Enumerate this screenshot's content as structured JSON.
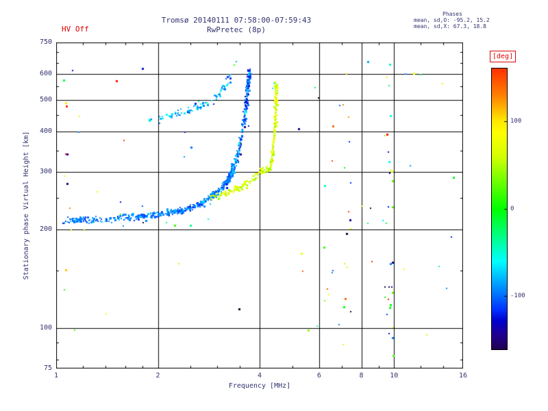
{
  "header": {
    "hv_status": "HV Off",
    "title": "Tromsø 20140111 07:58:00-07:59:43",
    "subtitle": "RwPretec (8p)",
    "phases": {
      "title": "Phases",
      "o_line": "mean, sd,O: -95.2, 15.2",
      "x_line": "mean, sd,X: 67.3, 18.8"
    }
  },
  "colors": {
    "text": "#30306e",
    "accent_red": "#dd0000",
    "grid": "#000000",
    "background": "#ffffff"
  },
  "chart_data": {
    "type": "scatter",
    "title": "Tromsø 20140111 07:58:00-07:59:43",
    "subtitle": "RwPretec (8p)",
    "xlabel": "Frequency [MHz]",
    "ylabel": "Stationary phase Virtual Height [km]",
    "x_scale": "log",
    "y_scale": "log",
    "xlim": [
      1,
      16
    ],
    "ylim": [
      75,
      750
    ],
    "x_ticks": [
      1,
      2,
      4,
      6,
      8,
      10,
      16
    ],
    "y_ticks": [
      75,
      100,
      200,
      300,
      400,
      500,
      600,
      750
    ],
    "x_minor": [
      1.2,
      1.4,
      1.6,
      1.8,
      2.5,
      3,
      3.5,
      5,
      7,
      9,
      12,
      14
    ],
    "y_minor": [
      80,
      90,
      150,
      250,
      350,
      450,
      550,
      650,
      700
    ],
    "grid_x": [
      2,
      4,
      6,
      8,
      10
    ],
    "grid_y": [
      100,
      200,
      300,
      400,
      500,
      600
    ],
    "grid": true,
    "colorbar": {
      "label": "[deg]",
      "ticks": [
        100,
        0,
        -100
      ],
      "range": [
        -160,
        160
      ]
    },
    "colormap": {
      "anchors": [
        [
          180,
          0
        ],
        [
          130,
          30
        ],
        [
          100,
          55
        ],
        [
          60,
          70
        ],
        [
          0,
          120
        ],
        [
          -60,
          180
        ],
        [
          -100,
          215
        ],
        [
          -140,
          250
        ],
        [
          -180,
          275
        ]
      ],
      "dark_below": -115,
      "dark_slope": 0.75
    },
    "phase_stats": {
      "o_mean": -95.2,
      "o_sd": 15.2,
      "x_mean": 67.3,
      "x_sd": 18.8
    },
    "traces": [
      {
        "name": "o-mode-lower",
        "seed": 11,
        "n": 520,
        "fjit": 0.007,
        "hjit": 0.011,
        "phase": -95,
        "sd": 13,
        "points": [
          [
            1.05,
            212
          ],
          [
            1.25,
            214
          ],
          [
            1.5,
            216
          ],
          [
            1.75,
            219
          ],
          [
            2.0,
            223
          ],
          [
            2.25,
            227
          ],
          [
            2.5,
            233
          ],
          [
            2.7,
            241
          ],
          [
            2.9,
            253
          ],
          [
            3.05,
            264
          ],
          [
            3.2,
            280
          ],
          [
            3.3,
            297
          ],
          [
            3.38,
            318
          ]
        ]
      },
      {
        "name": "o-mode-asymptote",
        "seed": 12,
        "n": 200,
        "fjit": 0.006,
        "hjit": 0.012,
        "phase": -102,
        "sd": 24,
        "points": [
          [
            3.38,
            318
          ],
          [
            3.47,
            350
          ],
          [
            3.53,
            385
          ],
          [
            3.58,
            420
          ],
          [
            3.62,
            455
          ],
          [
            3.65,
            490
          ],
          [
            3.67,
            520
          ],
          [
            3.69,
            550
          ],
          [
            3.71,
            580
          ],
          [
            3.73,
            610
          ]
        ]
      },
      {
        "name": "second-hop-echo",
        "seed": 13,
        "n": 95,
        "fjit": 0.008,
        "hjit": 0.012,
        "phase": -78,
        "sd": 18,
        "points": [
          [
            1.85,
            428
          ],
          [
            2.05,
            440
          ],
          [
            2.25,
            452
          ],
          [
            2.45,
            462
          ],
          [
            2.6,
            472
          ],
          [
            2.75,
            484
          ],
          [
            2.9,
            500
          ],
          [
            3.0,
            515
          ],
          [
            3.1,
            534
          ],
          [
            3.2,
            562
          ],
          [
            3.3,
            600
          ]
        ]
      },
      {
        "name": "x-mode-lower",
        "seed": 14,
        "n": 120,
        "fjit": 0.009,
        "hjit": 0.011,
        "phase": 66,
        "sd": 16,
        "points": [
          [
            2.85,
            250
          ],
          [
            3.1,
            257
          ],
          [
            3.35,
            264
          ],
          [
            3.55,
            272
          ],
          [
            3.72,
            280
          ],
          [
            3.88,
            291
          ],
          [
            4.0,
            302
          ],
          [
            4.12,
            304
          ],
          [
            4.25,
            306
          ]
        ]
      },
      {
        "name": "x-mode-asymptote",
        "seed": 15,
        "n": 160,
        "fjit": 0.005,
        "hjit": 0.009,
        "phase": 68,
        "sd": 17,
        "points": [
          [
            4.3,
            308
          ],
          [
            4.36,
            335
          ],
          [
            4.4,
            368
          ],
          [
            4.43,
            400
          ],
          [
            4.45,
            435
          ],
          [
            4.46,
            468
          ],
          [
            4.47,
            500
          ],
          [
            4.48,
            532
          ],
          [
            4.49,
            558
          ]
        ]
      }
    ],
    "noise_groups": [
      {
        "name": "column-7mhz",
        "seed": 21,
        "f": [
          7.0,
          7.45
        ],
        "h": [
          85,
          640
        ],
        "n": 13
      },
      {
        "name": "column-9p6mhz",
        "seed": 22,
        "f": [
          9.3,
          9.95
        ],
        "h": [
          80,
          660
        ],
        "n": 28
      },
      {
        "name": "column-6p3mhz",
        "seed": 23,
        "f": [
          6.2,
          6.6
        ],
        "h": [
          100,
          520
        ],
        "n": 6
      },
      {
        "name": "left-edge-scatter",
        "seed": 24,
        "f": [
          1.03,
          1.18
        ],
        "h": [
          95,
          640
        ],
        "n": 14
      },
      {
        "name": "sparse-right",
        "seed": 25,
        "f": [
          5.0,
          15.8
        ],
        "h": [
          80,
          660
        ],
        "n": 26
      },
      {
        "name": "sparse-mid",
        "seed": 26,
        "f": [
          1.3,
          4.8
        ],
        "h": [
          85,
          700
        ],
        "n": 14
      },
      {
        "name": "band-outliers",
        "seed": 27,
        "f": [
          1.2,
          3.2
        ],
        "h": [
          198,
          242
        ],
        "n": 8
      }
    ],
    "extra_points": [
      [
        3.36,
        640,
        15
      ],
      [
        3.42,
        655,
        -80
      ],
      [
        1.07,
        490,
        95
      ],
      [
        1.06,
        292,
        100
      ],
      [
        4.42,
        560,
        -60
      ],
      [
        9.6,
        122,
        170
      ],
      [
        7.25,
        600,
        110
      ],
      [
        9.55,
        585,
        100
      ],
      [
        6.9,
        480,
        -100
      ],
      [
        2.35,
        455,
        -70
      ],
      [
        10.8,
        600,
        -90
      ],
      [
        12.5,
        95,
        60
      ],
      [
        14.8,
        190,
        -120
      ],
      [
        13.9,
        560,
        100
      ]
    ]
  }
}
